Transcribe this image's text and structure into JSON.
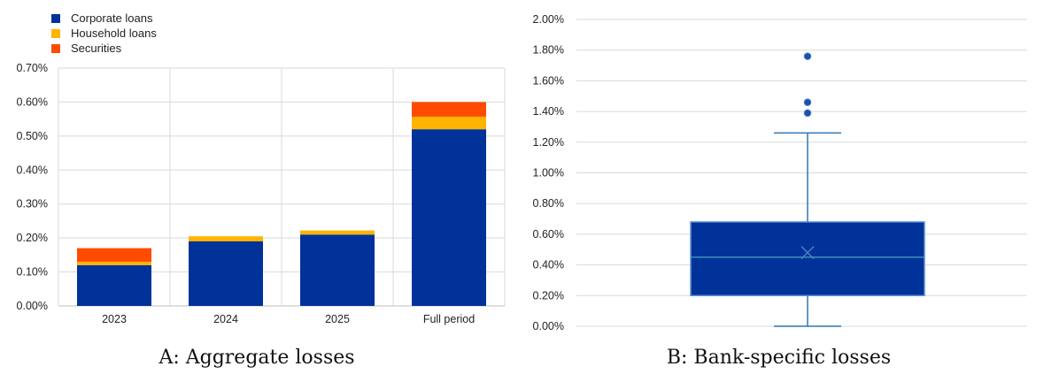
{
  "chart_data": [
    {
      "type": "bar",
      "stacked": true,
      "categories": [
        "2023",
        "2024",
        "2025",
        "Full period"
      ],
      "series": [
        {
          "name": "Corporate loans",
          "values": [
            0.12,
            0.19,
            0.21,
            0.52
          ]
        },
        {
          "name": "Household loans",
          "values": [
            0.01,
            0.015,
            0.012,
            0.037
          ]
        },
        {
          "name": "Securities",
          "values": [
            0.04,
            0.0,
            0.0,
            0.043
          ]
        }
      ],
      "colors": {
        "Corporate loans": "#003299",
        "Household loans": "#FFB400",
        "Securities": "#FF4B00"
      },
      "ylim": [
        0,
        0.7
      ],
      "yticks": [
        "0.00%",
        "0.10%",
        "0.20%",
        "0.30%",
        "0.40%",
        "0.50%",
        "0.60%",
        "0.70%"
      ],
      "legend_position": "top-left",
      "grid": true,
      "caption": "A: Aggregate losses"
    },
    {
      "type": "box",
      "ylim": [
        0,
        2.0
      ],
      "yticks": [
        "0.00%",
        "0.20%",
        "0.40%",
        "0.60%",
        "0.80%",
        "1.00%",
        "1.20%",
        "1.40%",
        "1.60%",
        "1.80%",
        "2.00%"
      ],
      "box": {
        "min": 0.0,
        "q1": 0.2,
        "median": 0.45,
        "q3": 0.68,
        "max": 1.26,
        "mean": 0.48
      },
      "outliers": [
        1.39,
        1.46,
        1.76
      ],
      "color": "#003299",
      "grid": true,
      "caption": "B: Bank-specific losses"
    }
  ]
}
